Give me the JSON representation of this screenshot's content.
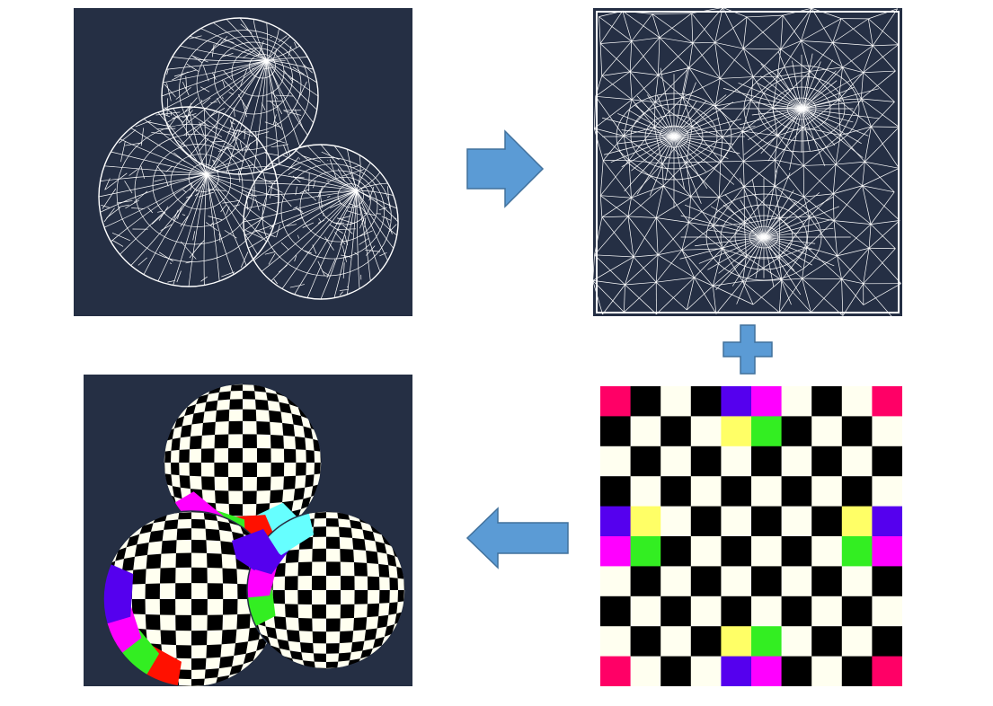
{
  "colors": {
    "panel_background": "#252f44",
    "wire": "#ffffff",
    "arrow_fill": "#5b9bd5",
    "arrow_stroke": "#41719c",
    "checker_dark": "#000000",
    "checker_light": "#fffff0",
    "magenta": "#ff00ff",
    "crimson": "#ff0066",
    "violet": "#5500ee",
    "yellow": "#ffff66",
    "green": "#33ee22",
    "cyan": "#66ffff",
    "red": "#ff1100"
  },
  "icons": {
    "flow_right": "right-arrow-icon",
    "flow_combine": "plus-icon",
    "flow_left": "left-arrow-icon"
  },
  "texture": {
    "rows": 10,
    "cols": 10,
    "special_cells": [
      {
        "r": 0,
        "c": 0,
        "color": "crimson"
      },
      {
        "r": 0,
        "c": 4,
        "color": "violet"
      },
      {
        "r": 0,
        "c": 5,
        "color": "magenta"
      },
      {
        "r": 0,
        "c": 9,
        "color": "crimson"
      },
      {
        "r": 1,
        "c": 4,
        "color": "yellow"
      },
      {
        "r": 1,
        "c": 5,
        "color": "green"
      },
      {
        "r": 4,
        "c": 0,
        "color": "violet"
      },
      {
        "r": 4,
        "c": 1,
        "color": "yellow"
      },
      {
        "r": 4,
        "c": 8,
        "color": "yellow"
      },
      {
        "r": 4,
        "c": 9,
        "color": "violet"
      },
      {
        "r": 5,
        "c": 0,
        "color": "magenta"
      },
      {
        "r": 5,
        "c": 1,
        "color": "green"
      },
      {
        "r": 5,
        "c": 8,
        "color": "green"
      },
      {
        "r": 5,
        "c": 9,
        "color": "magenta"
      },
      {
        "r": 8,
        "c": 4,
        "color": "yellow"
      },
      {
        "r": 8,
        "c": 5,
        "color": "green"
      },
      {
        "r": 9,
        "c": 0,
        "color": "crimson"
      },
      {
        "r": 9,
        "c": 4,
        "color": "violet"
      },
      {
        "r": 9,
        "c": 5,
        "color": "magenta"
      },
      {
        "r": 9,
        "c": 9,
        "color": "crimson"
      }
    ]
  }
}
